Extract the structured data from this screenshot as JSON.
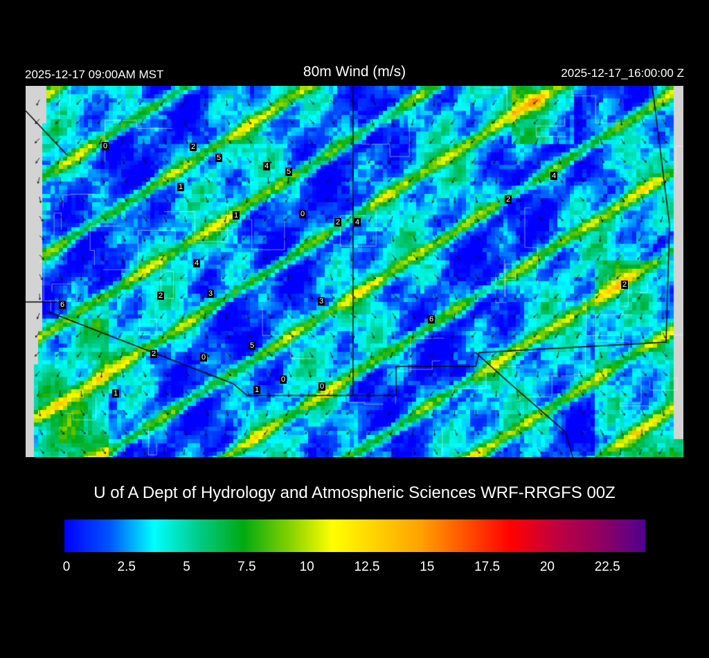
{
  "header": {
    "valid_local": "2025-12-17 09:00AM MST",
    "title": "80m Wind (m/s)",
    "valid_utc": "2025-12-17_16:00:00 Z"
  },
  "map": {
    "field": "80m wind speed",
    "background_outside_domain": "#d3d3d3",
    "boundary_color": "#000000",
    "county_line_color": "#ffffff",
    "station_labels": [
      "0",
      "2",
      "5",
      "4",
      "5",
      "1",
      "1",
      "0",
      "2",
      "4",
      "2",
      "4",
      "4",
      "2",
      "3",
      "3",
      "6",
      "6",
      "2",
      "2",
      "0",
      "5",
      "0",
      "1",
      "0",
      "1"
    ]
  },
  "footer": {
    "credit": "U of A Dept of Hydrology and Atmospheric Sciences WRF-RRGFS 00Z"
  },
  "colorbar": {
    "range": [
      0,
      24
    ],
    "colors": [
      "#0000ff",
      "#0055ff",
      "#00ffff",
      "#00cc88",
      "#00aa10",
      "#80d000",
      "#ffff00",
      "#ffd000",
      "#ffa000",
      "#ff5000",
      "#ff0000",
      "#c00040",
      "#900060",
      "#500090"
    ],
    "tick_labels": [
      "0",
      "2.5",
      "5",
      "7.5",
      "10",
      "12.5",
      "15",
      "17.5",
      "20",
      "22.5"
    ]
  }
}
